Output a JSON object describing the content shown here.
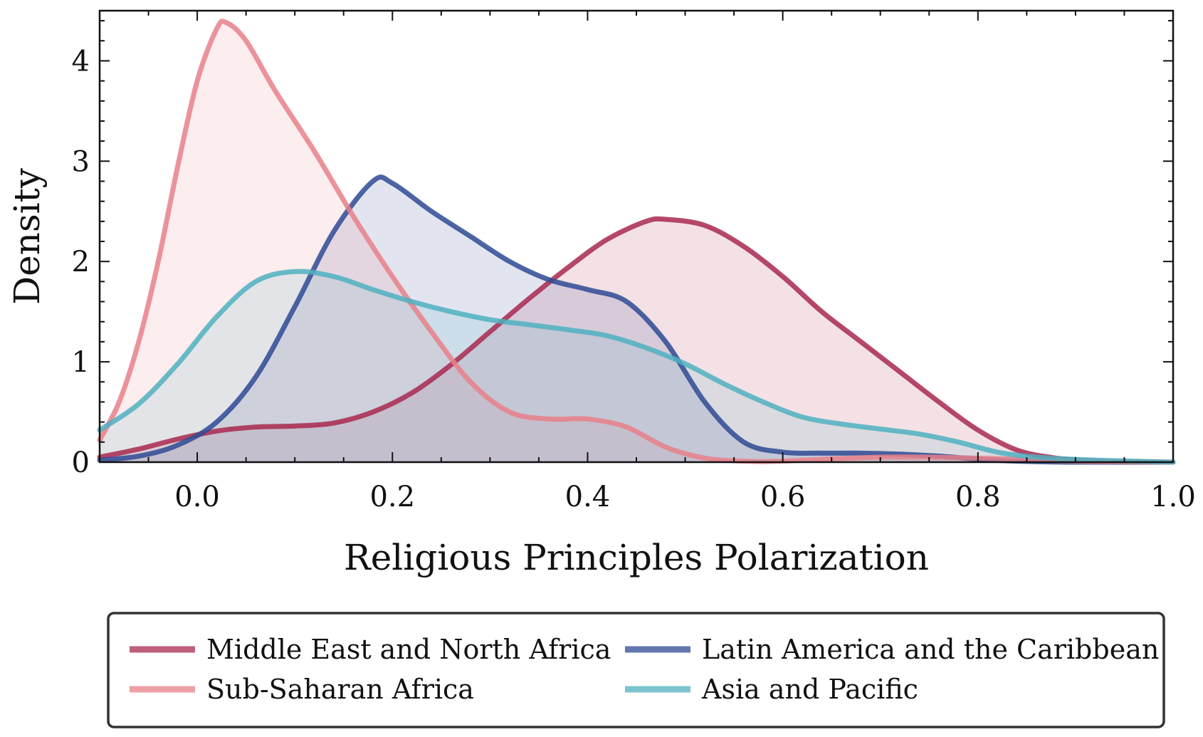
{
  "chart_data": {
    "type": "area",
    "title": "",
    "xlabel": "Religious Principles Polarization",
    "ylabel": "Density",
    "xlim": [
      -0.1,
      1.0
    ],
    "ylim": [
      0,
      4.5
    ],
    "xticks": [
      0.0,
      0.2,
      0.4,
      0.6,
      0.8,
      1.0
    ],
    "xtick_labels": [
      "0.0",
      "0.2",
      "0.4",
      "0.6",
      "0.8",
      "1.0"
    ],
    "yticks": [
      0,
      1,
      2,
      3,
      4
    ],
    "ytick_labels": [
      "0",
      "1",
      "2",
      "3",
      "4"
    ],
    "grid": false,
    "legend_position": "bottom-center",
    "series": [
      {
        "name": "Middle East and North Africa",
        "color": "#a8294f",
        "points": [
          [
            -0.1,
            0.05
          ],
          [
            -0.06,
            0.13
          ],
          [
            -0.02,
            0.23
          ],
          [
            0.02,
            0.31
          ],
          [
            0.06,
            0.35
          ],
          [
            0.1,
            0.36
          ],
          [
            0.14,
            0.39
          ],
          [
            0.18,
            0.5
          ],
          [
            0.22,
            0.69
          ],
          [
            0.26,
            0.97
          ],
          [
            0.3,
            1.3
          ],
          [
            0.34,
            1.63
          ],
          [
            0.38,
            1.94
          ],
          [
            0.42,
            2.22
          ],
          [
            0.46,
            2.4
          ],
          [
            0.48,
            2.42
          ],
          [
            0.52,
            2.36
          ],
          [
            0.56,
            2.15
          ],
          [
            0.6,
            1.85
          ],
          [
            0.64,
            1.5
          ],
          [
            0.68,
            1.2
          ],
          [
            0.72,
            0.9
          ],
          [
            0.76,
            0.6
          ],
          [
            0.8,
            0.32
          ],
          [
            0.84,
            0.12
          ],
          [
            0.88,
            0.04
          ],
          [
            0.92,
            0.01
          ],
          [
            1.0,
            0.0
          ]
        ]
      },
      {
        "name": "Latin America and the Caribbean",
        "color": "#2f4a94",
        "points": [
          [
            -0.1,
            0.02
          ],
          [
            -0.06,
            0.06
          ],
          [
            -0.02,
            0.17
          ],
          [
            0.02,
            0.4
          ],
          [
            0.06,
            0.85
          ],
          [
            0.1,
            1.55
          ],
          [
            0.14,
            2.3
          ],
          [
            0.18,
            2.8
          ],
          [
            0.2,
            2.78
          ],
          [
            0.24,
            2.5
          ],
          [
            0.28,
            2.25
          ],
          [
            0.32,
            2.0
          ],
          [
            0.36,
            1.82
          ],
          [
            0.4,
            1.72
          ],
          [
            0.44,
            1.6
          ],
          [
            0.48,
            1.2
          ],
          [
            0.52,
            0.6
          ],
          [
            0.56,
            0.2
          ],
          [
            0.6,
            0.1
          ],
          [
            0.64,
            0.09
          ],
          [
            0.68,
            0.09
          ],
          [
            0.72,
            0.08
          ],
          [
            0.76,
            0.06
          ],
          [
            0.8,
            0.03
          ],
          [
            0.84,
            0.01
          ],
          [
            0.9,
            0.0
          ],
          [
            1.0,
            0.0
          ]
        ]
      },
      {
        "name": "Sub-Saharan Africa",
        "color": "#e8808a",
        "points": [
          [
            -0.1,
            0.22
          ],
          [
            -0.08,
            0.6
          ],
          [
            -0.06,
            1.2
          ],
          [
            -0.04,
            2.0
          ],
          [
            -0.02,
            2.95
          ],
          [
            0.0,
            3.8
          ],
          [
            0.02,
            4.32
          ],
          [
            0.03,
            4.38
          ],
          [
            0.05,
            4.2
          ],
          [
            0.08,
            3.7
          ],
          [
            0.12,
            3.1
          ],
          [
            0.16,
            2.45
          ],
          [
            0.2,
            1.85
          ],
          [
            0.24,
            1.3
          ],
          [
            0.28,
            0.8
          ],
          [
            0.32,
            0.5
          ],
          [
            0.36,
            0.43
          ],
          [
            0.4,
            0.43
          ],
          [
            0.44,
            0.35
          ],
          [
            0.48,
            0.15
          ],
          [
            0.52,
            0.04
          ],
          [
            0.56,
            0.01
          ],
          [
            0.6,
            0.01
          ],
          [
            0.7,
            0.05
          ],
          [
            0.8,
            0.04
          ],
          [
            0.9,
            0.01
          ],
          [
            1.0,
            0.0
          ]
        ]
      },
      {
        "name": "Asia and Pacific",
        "color": "#4fb0bf",
        "points": [
          [
            -0.1,
            0.32
          ],
          [
            -0.06,
            0.58
          ],
          [
            -0.02,
            0.98
          ],
          [
            0.02,
            1.45
          ],
          [
            0.06,
            1.8
          ],
          [
            0.1,
            1.9
          ],
          [
            0.14,
            1.85
          ],
          [
            0.18,
            1.72
          ],
          [
            0.22,
            1.6
          ],
          [
            0.26,
            1.5
          ],
          [
            0.3,
            1.42
          ],
          [
            0.34,
            1.37
          ],
          [
            0.38,
            1.32
          ],
          [
            0.42,
            1.26
          ],
          [
            0.46,
            1.14
          ],
          [
            0.5,
            0.98
          ],
          [
            0.54,
            0.78
          ],
          [
            0.58,
            0.6
          ],
          [
            0.62,
            0.45
          ],
          [
            0.66,
            0.38
          ],
          [
            0.7,
            0.33
          ],
          [
            0.74,
            0.28
          ],
          [
            0.78,
            0.2
          ],
          [
            0.82,
            0.1
          ],
          [
            0.86,
            0.05
          ],
          [
            0.92,
            0.02
          ],
          [
            1.0,
            0.0
          ]
        ]
      }
    ]
  },
  "legend": {
    "items": [
      {
        "label": "Middle East and North Africa",
        "color": "#a8294f"
      },
      {
        "label": "Latin America and the Caribbean",
        "color": "#2f4a94"
      },
      {
        "label": "Sub-Saharan Africa",
        "color": "#e8808a"
      },
      {
        "label": "Asia and Pacific",
        "color": "#4fb0bf"
      }
    ]
  }
}
